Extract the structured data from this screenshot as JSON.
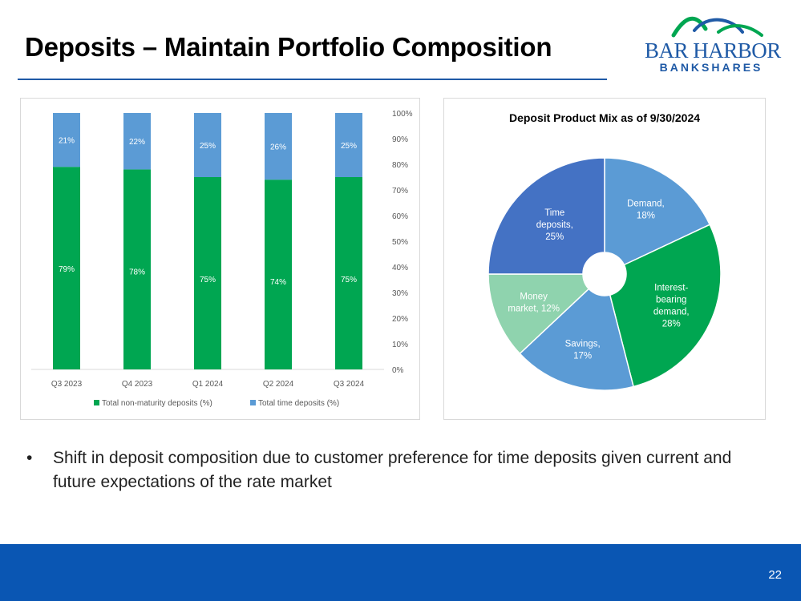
{
  "slide": {
    "title": "Deposits – Maintain Portfolio Composition",
    "page_number": "22",
    "bullet": "Shift in deposit composition due to customer preference for time deposits given current and future expectations of the rate market"
  },
  "logo": {
    "line1": "BAR HARBOR",
    "line2": "BANKSHARES",
    "color_blue": "#1f5aa6",
    "color_green": "#00a651"
  },
  "chart_data": [
    {
      "type": "bar",
      "stacked": true,
      "categories": [
        "Q3 2023",
        "Q4 2023",
        "Q1 2024",
        "Q2 2024",
        "Q3 2024"
      ],
      "series": [
        {
          "name": "Total non-maturity deposits (%)",
          "values": [
            79,
            78,
            75,
            74,
            75
          ],
          "color": "#00a651"
        },
        {
          "name": "Total time deposits (%)",
          "values": [
            21,
            22,
            25,
            26,
            25
          ],
          "color": "#5b9bd5"
        }
      ],
      "data_labels": {
        "non_maturity": [
          "79%",
          "78%",
          "75%",
          "74%",
          "75%"
        ],
        "time": [
          "21%",
          "22%",
          "25%",
          "26%",
          "25%"
        ]
      },
      "y_ticks": [
        "0%",
        "10%",
        "20%",
        "30%",
        "40%",
        "50%",
        "60%",
        "70%",
        "80%",
        "90%",
        "100%"
      ],
      "ylim": [
        0,
        100
      ],
      "y_axis_side": "right",
      "legend_position": "bottom",
      "title": "",
      "xlabel": "",
      "ylabel": ""
    },
    {
      "type": "pie",
      "title": "Deposit Product Mix as of 9/30/2024",
      "donut": true,
      "slices": [
        {
          "lines": [
            "Demand,",
            "18%"
          ],
          "value": 18,
          "color": "#5b9bd5"
        },
        {
          "lines": [
            "Interest-",
            "bearing",
            "demand,",
            "28%"
          ],
          "value": 28,
          "color": "#00a651"
        },
        {
          "lines": [
            "Savings,",
            "17%"
          ],
          "value": 17,
          "color": "#5b9bd5"
        },
        {
          "lines": [
            "Money",
            "market, 12%"
          ],
          "value": 12,
          "color": "#8fd3ae"
        },
        {
          "lines": [
            "Time",
            "deposits,",
            "25%"
          ],
          "value": 25,
          "color": "#4472c4"
        }
      ]
    }
  ]
}
